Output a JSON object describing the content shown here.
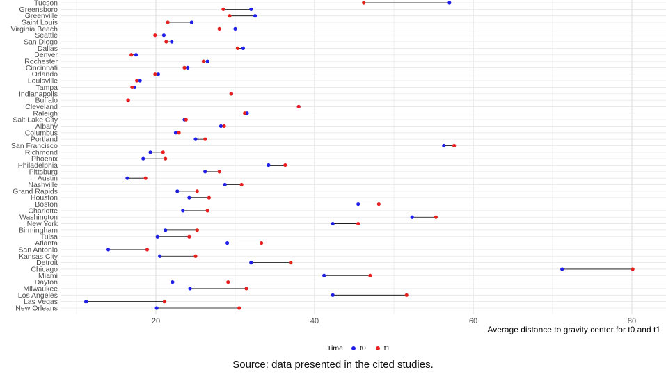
{
  "chart_data": {
    "type": "dumbbell",
    "xlabel": "Average distance to gravity center for t0 and t1",
    "ylabel": "",
    "xlim": [
      7,
      85
    ],
    "xticks": [
      20,
      40,
      60,
      80
    ],
    "grid": true,
    "legend_title": "Time",
    "series": [
      {
        "name": "t0",
        "color": "#1f1fe6"
      },
      {
        "name": "t1",
        "color": "#e61f1f"
      }
    ],
    "categories": [
      "Tucson",
      "Greensboro",
      "Greenville",
      "Saint Louis",
      "Virginia Beach",
      "Seattle",
      "San Diego",
      "Dallas",
      "Denver",
      "Rochester",
      "Cincinnati",
      "Orlando",
      "Louisville",
      "Tampa",
      "Indianapolis",
      "Buffalo",
      "Cleveland",
      "Raleigh",
      "Salt Lake City",
      "Albany",
      "Columbus",
      "Portland",
      "San Francisco",
      "Richmond",
      "Phoenix",
      "Philadelphia",
      "Pittsburg",
      "Austin",
      "Nashville",
      "Grand Rapids",
      "Houston",
      "Boston",
      "Charlotte",
      "Washington",
      "New York",
      "Birmingham",
      "Tulsa",
      "Atlanta",
      "San Antonio",
      "Kansas City",
      "Detroit",
      "Chicago",
      "Miami",
      "Dayton",
      "Milwaukee",
      "Los Angeles",
      "Las Vegas",
      "New Orleans"
    ],
    "t0": [
      57,
      32,
      32.5,
      24.5,
      30,
      21,
      22,
      31,
      17.5,
      26.5,
      24,
      20.3,
      18,
      17.3,
      29.5,
      16.5,
      38,
      31.5,
      23.6,
      28.2,
      22.5,
      25,
      56.3,
      19.3,
      18.4,
      34.2,
      26.2,
      16.4,
      28.7,
      22.7,
      24.2,
      45.5,
      23.4,
      52.3,
      42.3,
      21.2,
      20.2,
      29,
      14,
      20.5,
      32,
      71.2,
      41.2,
      22.1,
      24.3,
      42.3,
      11.2,
      20.1
    ],
    "t1": [
      46.2,
      28.5,
      29.3,
      21.5,
      28,
      19.9,
      21.3,
      30.3,
      16.9,
      26,
      23.6,
      19.9,
      17.6,
      17,
      29.5,
      16.5,
      38,
      31.2,
      23.8,
      28.6,
      22.9,
      26.2,
      57.6,
      20.9,
      21.2,
      36.3,
      28,
      18.7,
      30.8,
      25.2,
      26.7,
      48.1,
      26.5,
      55.3,
      45.5,
      25.2,
      24.2,
      33.3,
      18.9,
      25,
      37,
      80.1,
      47,
      29.1,
      31.4,
      51.6,
      21.1,
      30.5
    ]
  },
  "caption": "Source: data presented in the cited studies.",
  "legend": {
    "title": "Time",
    "t0_label": "t0",
    "t1_label": "t1"
  }
}
